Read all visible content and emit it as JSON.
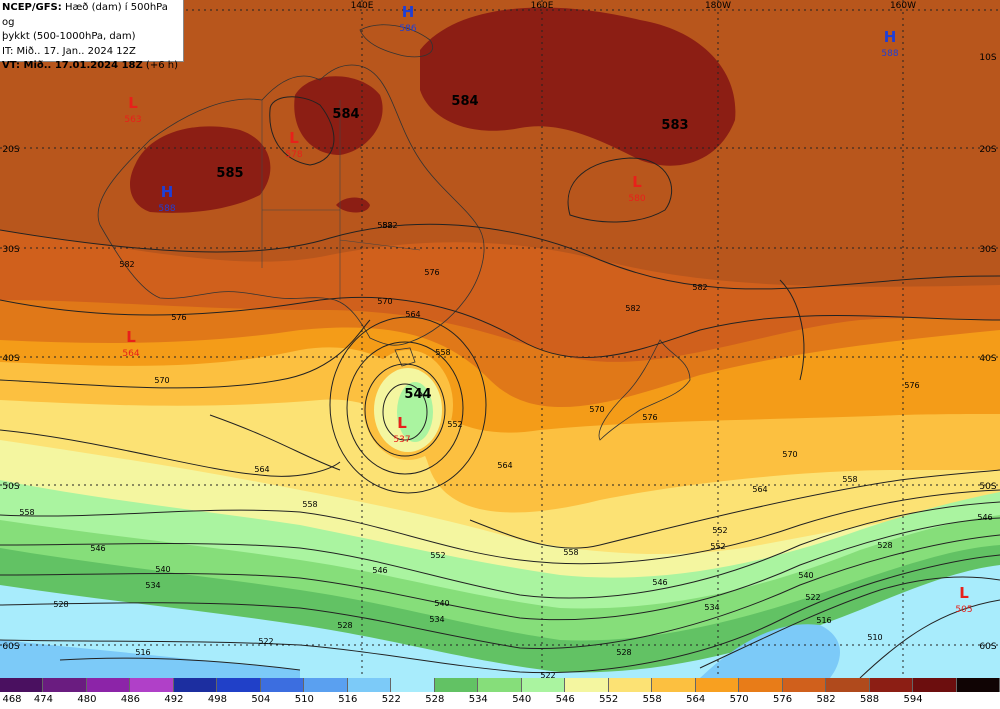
{
  "header": {
    "line1_bold": "NCEP/GFS:",
    "line1_rest": " Hæð (dam) í 500hPa og",
    "line2": "þykkt (500-1000hPa, dam)",
    "line3": "IT: Mið.. 17. Jan.. 2024 12Z",
    "line4_bold": "VT: Mið.. 17.01.2024 18Z",
    "line4_rest": " (+6 h)"
  },
  "longitude_labels": [
    "140E",
    "160E",
    "180W",
    "160W"
  ],
  "latitude_labels_left": [
    "20S",
    "30S",
    "40S",
    "50S",
    "60S"
  ],
  "latitude_labels_right": [
    "10S",
    "20S",
    "30S",
    "40S",
    "50S",
    "60S"
  ],
  "pressure_centers": [
    {
      "type": "L",
      "value": "563",
      "color": "#e8201a"
    },
    {
      "type": "L",
      "value": "578",
      "color": "#e8201a"
    },
    {
      "type": "H",
      "value": "588",
      "color": "#1f3fd6"
    },
    {
      "type": "H",
      "value": "586",
      "color": "#1f3fd6"
    },
    {
      "type": "H",
      "value": "588",
      "color": "#1f3fd6"
    },
    {
      "type": "L",
      "value": "580",
      "color": "#e8201a"
    },
    {
      "type": "L",
      "value": "564",
      "color": "#e8201a"
    },
    {
      "type": "L",
      "value": "537",
      "color": "#e8201a"
    },
    {
      "type": "L",
      "value": "505",
      "color": "#e8201a"
    }
  ],
  "thickness_values": [
    "585",
    "584",
    "584",
    "583",
    "544"
  ],
  "contour_labels": [
    "582",
    "582",
    "582",
    "576",
    "576",
    "576",
    "570",
    "570",
    "570",
    "570",
    "564",
    "564",
    "564",
    "564",
    "558",
    "558",
    "558",
    "558",
    "552",
    "552",
    "552",
    "552",
    "546",
    "546",
    "546",
    "546",
    "540",
    "540",
    "540",
    "534",
    "534",
    "534",
    "528",
    "528",
    "528",
    "528",
    "522",
    "522",
    "522",
    "516",
    "516",
    "510",
    "582",
    "582",
    "558",
    "576"
  ],
  "legend": {
    "values": [
      "468",
      "474",
      "480",
      "486",
      "492",
      "498",
      "504",
      "510",
      "516",
      "522",
      "528",
      "534",
      "540",
      "546",
      "552",
      "558",
      "564",
      "570",
      "576",
      "582",
      "588",
      "594"
    ],
    "colors": [
      "#4a1060",
      "#6a1c80",
      "#8c24a8",
      "#b040c8",
      "#1c2ea0",
      "#2040c8",
      "#3c6ee0",
      "#5aa0f0",
      "#7ccaf8",
      "#a8ecfc",
      "#62c264",
      "#86de7a",
      "#aaf4a0",
      "#f4f6a0",
      "#fce274",
      "#fcc040",
      "#f8a020",
      "#e87c18",
      "#d0601c",
      "#b04a1c",
      "#8c1e14",
      "#6c0e0e",
      "#100404"
    ]
  }
}
